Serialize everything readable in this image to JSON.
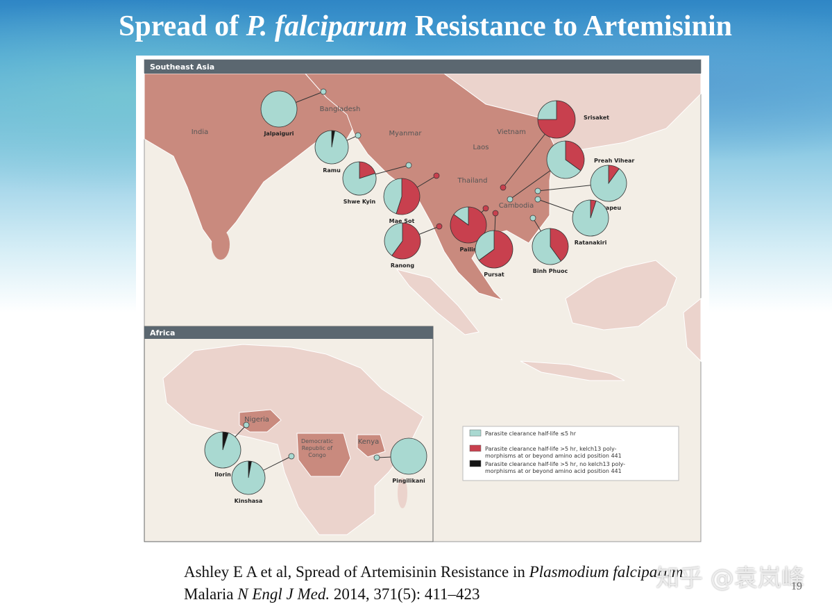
{
  "title": {
    "prefix": "Spread of ",
    "italic": "P. falciparum",
    "suffix": " Resistance to Artemisinin"
  },
  "map": {
    "panels": [
      {
        "title": "Southeast Asia"
      },
      {
        "title": "Africa"
      }
    ],
    "regions": [
      "India",
      "Bangladesh",
      "Myanmar",
      "Vietnam",
      "Laos",
      "Thailand",
      "Cambodia",
      "Nigeria",
      "Democratic",
      "Republic of",
      "Congo",
      "Kenya"
    ],
    "legend": [
      {
        "label": "Parasite clearance half-life ≤5 hr",
        "color": "#a9d9d1"
      },
      {
        "label": "Parasite clearance half-life >5 hr, kelch13 poly-",
        "label2": "morphisms at or beyond amino acid position 441",
        "color": "#c8404e"
      },
      {
        "label": "Parasite clearance half-life >5 hr, no kelch13 poly-",
        "label2": "morphisms at or beyond amino acid position 441",
        "color": "#151515"
      }
    ],
    "sites": [
      {
        "name": "Jalpaiguri",
        "shares": [
          100,
          0,
          0
        ]
      },
      {
        "name": "Ramu",
        "shares": [
          97,
          0,
          3
        ]
      },
      {
        "name": "Shwe Kyin",
        "shares": [
          80,
          20,
          0
        ]
      },
      {
        "name": "Mae Sot",
        "shares": [
          45,
          55,
          0
        ]
      },
      {
        "name": "Ranong",
        "shares": [
          40,
          60,
          0
        ]
      },
      {
        "name": "Pailin",
        "shares": [
          15,
          85,
          0
        ]
      },
      {
        "name": "Pursat",
        "shares": [
          35,
          65,
          0
        ]
      },
      {
        "name": "Srisaket",
        "shares": [
          25,
          75,
          0
        ]
      },
      {
        "name": "Preah Vihear",
        "shares": [
          65,
          35,
          0
        ]
      },
      {
        "name": "Attapeu",
        "shares": [
          90,
          10,
          0
        ]
      },
      {
        "name": "Ratanakiri",
        "shares": [
          95,
          5,
          0
        ]
      },
      {
        "name": "Binh Phuoc",
        "shares": [
          60,
          40,
          0
        ]
      },
      {
        "name": "Ilorin",
        "shares": [
          95,
          0,
          5
        ]
      },
      {
        "name": "Kinshasa",
        "shares": [
          97,
          0,
          3
        ]
      },
      {
        "name": "Pingilikani",
        "shares": [
          100,
          0,
          0
        ]
      }
    ]
  },
  "citation": {
    "line1": "Ashley E A et al, Spread of Artemisinin Resistance in ",
    "line1_italic": "Plasmodium falciparum",
    "line2_italic": "N Engl J Med.",
    "line2_start": "Malaria ",
    "line2_end": " 2014, 371(5): 411–423"
  },
  "watermark": "知乎 @袁岚峰",
  "page_number": "19"
}
